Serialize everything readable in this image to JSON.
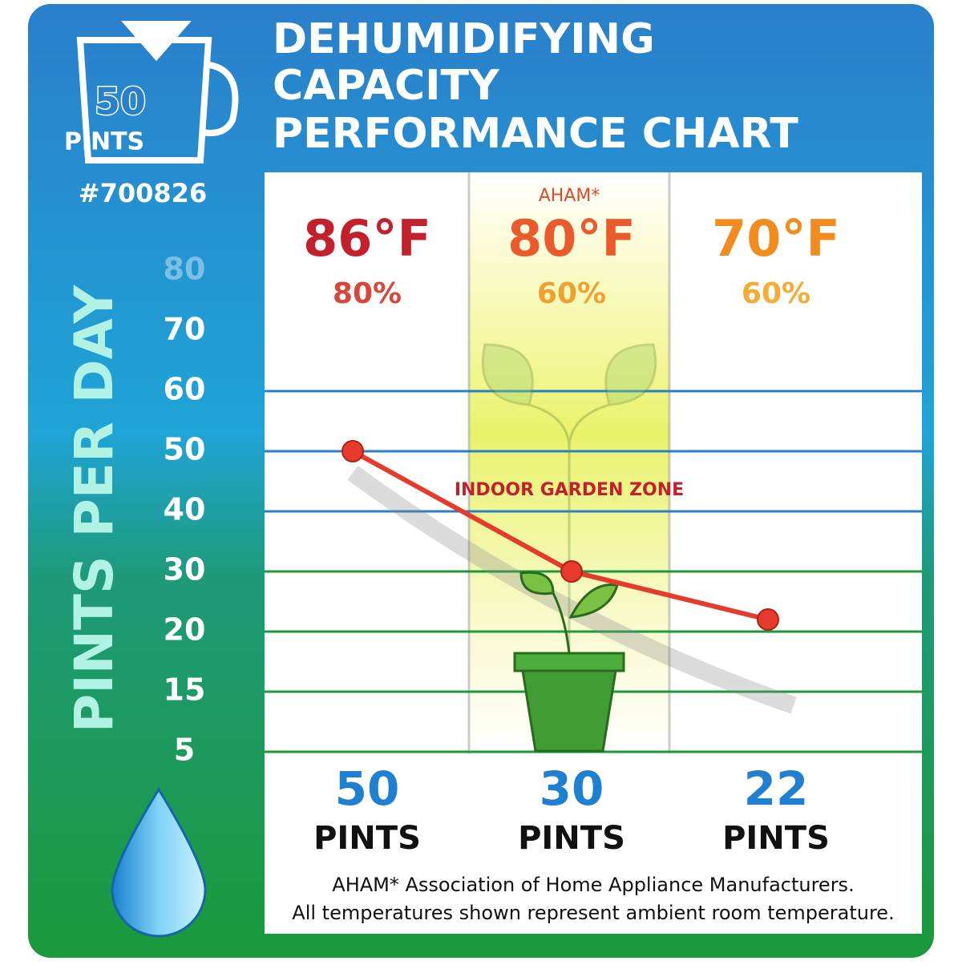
{
  "chart_data": {
    "type": "line",
    "title": [
      "DEHUMIDIFYING",
      "CAPACITY",
      "PERFORMANCE CHART"
    ],
    "model": "#700826",
    "badge": {
      "number": "50",
      "unit": "PINTS"
    },
    "ylabel": "PINTS PER DAY",
    "categories": [
      "86°F",
      "80°F",
      "70°F"
    ],
    "humidity": [
      "80%",
      "60%",
      "60%"
    ],
    "category_colors": [
      "#c4202c",
      "#ea5a2a",
      "#f28c1e"
    ],
    "humidity_colors": [
      "#d8463c",
      "#f0a02e",
      "#f5ac34"
    ],
    "highlight_note": "AHAM*",
    "zone_label": "INDOOR GARDEN ZONE",
    "values": [
      50,
      30,
      22
    ],
    "value_unit": "PINTS",
    "color": "#e53a2c",
    "ylim": [
      5,
      80
    ],
    "yticks": [
      80,
      70,
      60,
      50,
      40,
      30,
      20,
      15,
      5
    ],
    "grid": true,
    "footnote": [
      "AHAM* Association of Home Appliance Manufacturers.",
      "All temperatures shown represent ambient room temperature."
    ]
  }
}
